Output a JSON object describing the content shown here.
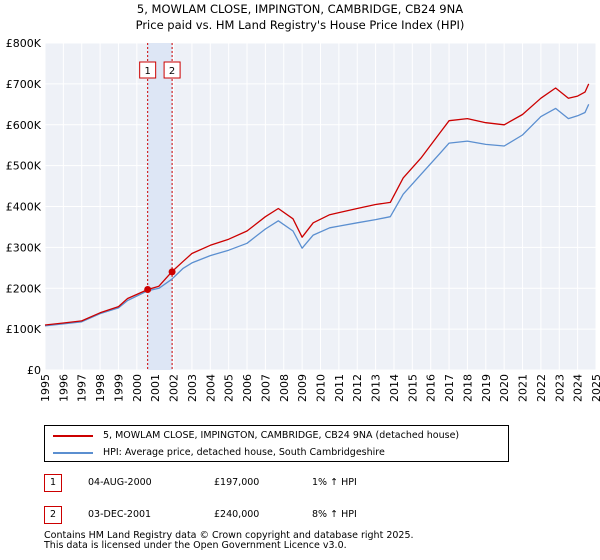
{
  "chart_data": {
    "type": "line",
    "title": "5, MOWLAM CLOSE, IMPINGTON, CAMBRIDGE, CB24 9NA",
    "subtitle": "Price paid vs. HM Land Registry's House Price Index (HPI)",
    "xlim": [
      1995,
      2025
    ],
    "ylim": [
      0,
      800000
    ],
    "x_ticks": [
      "1995",
      "1996",
      "1997",
      "1998",
      "1999",
      "2000",
      "2001",
      "2002",
      "2003",
      "2004",
      "2005",
      "2006",
      "2007",
      "2008",
      "2009",
      "2010",
      "2011",
      "2012",
      "2013",
      "2014",
      "2015",
      "2016",
      "2017",
      "2018",
      "2019",
      "2020",
      "2021",
      "2022",
      "2023",
      "2024",
      "2025"
    ],
    "y_ticks": [
      {
        "value": 0,
        "label": "£0"
      },
      {
        "value": 100000,
        "label": "£100K"
      },
      {
        "value": 200000,
        "label": "£200K"
      },
      {
        "value": 300000,
        "label": "£300K"
      },
      {
        "value": 400000,
        "label": "£400K"
      },
      {
        "value": 500000,
        "label": "£500K"
      },
      {
        "value": 600000,
        "label": "£600K"
      },
      {
        "value": 700000,
        "label": "£700K"
      },
      {
        "value": 800000,
        "label": "£800K"
      }
    ],
    "series": [
      {
        "name": "5, MOWLAM CLOSE, IMPINGTON, CAMBRIDGE, CB24 9NA (detached house)",
        "color": "#cc0000",
        "points": [
          [
            1995.0,
            110000
          ],
          [
            1996.0,
            115000
          ],
          [
            1997.0,
            120000
          ],
          [
            1998.0,
            140000
          ],
          [
            1999.0,
            155000
          ],
          [
            1999.5,
            175000
          ],
          [
            2000.6,
            197000
          ],
          [
            2001.2,
            205000
          ],
          [
            2001.9,
            240000
          ],
          [
            2002.5,
            265000
          ],
          [
            2003.0,
            285000
          ],
          [
            2004.0,
            305000
          ],
          [
            2005.0,
            320000
          ],
          [
            2006.0,
            340000
          ],
          [
            2007.0,
            375000
          ],
          [
            2007.7,
            395000
          ],
          [
            2008.5,
            370000
          ],
          [
            2009.0,
            325000
          ],
          [
            2009.6,
            360000
          ],
          [
            2010.5,
            380000
          ],
          [
            2011.0,
            385000
          ],
          [
            2012.0,
            395000
          ],
          [
            2013.0,
            405000
          ],
          [
            2013.8,
            410000
          ],
          [
            2014.5,
            470000
          ],
          [
            2015.5,
            520000
          ],
          [
            2016.5,
            580000
          ],
          [
            2017.0,
            610000
          ],
          [
            2018.0,
            615000
          ],
          [
            2019.0,
            605000
          ],
          [
            2020.0,
            600000
          ],
          [
            2021.0,
            625000
          ],
          [
            2022.0,
            665000
          ],
          [
            2022.8,
            690000
          ],
          [
            2023.5,
            665000
          ],
          [
            2024.0,
            670000
          ],
          [
            2024.4,
            680000
          ],
          [
            2024.6,
            700000
          ]
        ]
      },
      {
        "name": "HPI: Average price, detached house, South Cambridgeshire",
        "color": "#5b8fd0",
        "points": [
          [
            1995.0,
            108000
          ],
          [
            1996.0,
            113000
          ],
          [
            1997.0,
            118000
          ],
          [
            1998.0,
            138000
          ],
          [
            1999.0,
            152000
          ],
          [
            1999.5,
            170000
          ],
          [
            2000.6,
            194000
          ],
          [
            2001.2,
            200000
          ],
          [
            2001.9,
            222000
          ],
          [
            2002.5,
            248000
          ],
          [
            2003.0,
            262000
          ],
          [
            2004.0,
            280000
          ],
          [
            2005.0,
            293000
          ],
          [
            2006.0,
            310000
          ],
          [
            2007.0,
            345000
          ],
          [
            2007.7,
            365000
          ],
          [
            2008.5,
            340000
          ],
          [
            2009.0,
            298000
          ],
          [
            2009.6,
            330000
          ],
          [
            2010.5,
            348000
          ],
          [
            2011.0,
            352000
          ],
          [
            2012.0,
            360000
          ],
          [
            2013.0,
            368000
          ],
          [
            2013.8,
            375000
          ],
          [
            2014.5,
            430000
          ],
          [
            2015.5,
            480000
          ],
          [
            2016.5,
            530000
          ],
          [
            2017.0,
            555000
          ],
          [
            2018.0,
            560000
          ],
          [
            2019.0,
            552000
          ],
          [
            2020.0,
            548000
          ],
          [
            2021.0,
            575000
          ],
          [
            2022.0,
            620000
          ],
          [
            2022.8,
            640000
          ],
          [
            2023.5,
            615000
          ],
          [
            2024.0,
            622000
          ],
          [
            2024.4,
            630000
          ],
          [
            2024.6,
            650000
          ]
        ]
      }
    ],
    "sales": [
      {
        "label": "1",
        "x": 2000.59,
        "price": 197000
      },
      {
        "label": "2",
        "x": 2001.92,
        "price": 240000
      }
    ]
  },
  "legend": {
    "property": "5, MOWLAM CLOSE, IMPINGTON, CAMBRIDGE, CB24 9NA (detached house)",
    "hpi": "HPI: Average price, detached house, South Cambridgeshire",
    "property_color": "#cc0000",
    "hpi_color": "#5b8fd0"
  },
  "sales_table": [
    {
      "label": "1",
      "date": "04-AUG-2000",
      "price": "£197,000",
      "hpi": "1% ↑ HPI"
    },
    {
      "label": "2",
      "date": "03-DEC-2001",
      "price": "£240,000",
      "hpi": "8% ↑ HPI"
    }
  ],
  "footer": {
    "line1": "Contains HM Land Registry data © Crown copyright and database right 2025.",
    "line2": "This data is licensed under the Open Government Licence v3.0."
  }
}
